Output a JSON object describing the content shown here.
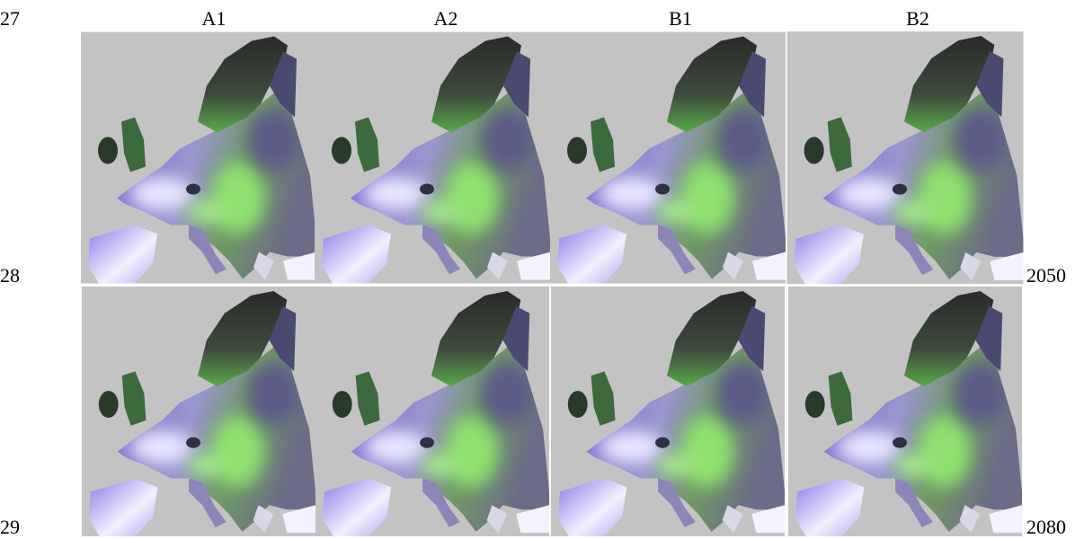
{
  "line_numbers": [
    "27",
    "28",
    "29"
  ],
  "columns": [
    "A1",
    "A2",
    "B1",
    "B2"
  ],
  "rows": [
    "2050",
    "2080"
  ]
}
